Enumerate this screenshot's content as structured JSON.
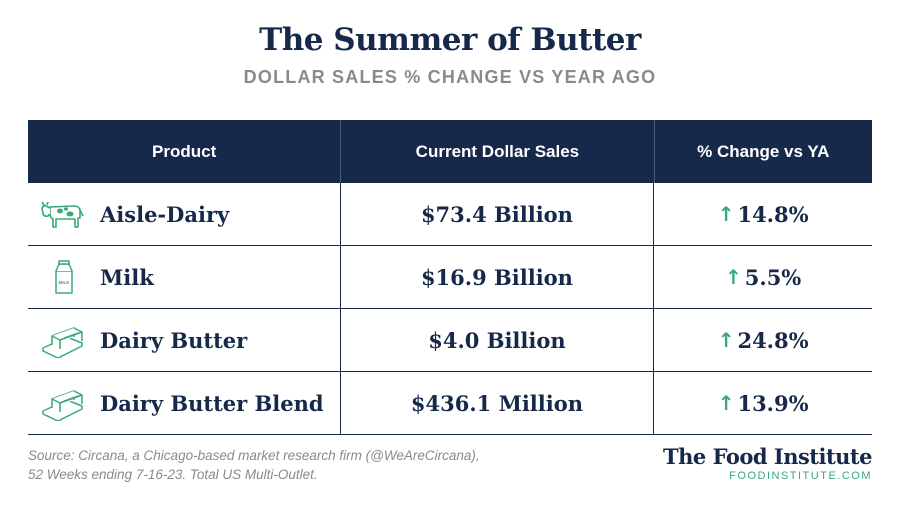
{
  "title": "The Summer of Butter",
  "subtitle": "DOLLAR SALES % CHANGE VS YEAR AGO",
  "chart_data": {
    "type": "table",
    "columns": [
      "Product",
      "Current Dollar Sales",
      "% Change vs YA"
    ],
    "rows": [
      {
        "product": "Aisle-Dairy",
        "icon": "cow-icon",
        "sales": "$73.4 Billion",
        "change": "14.8%",
        "direction": "up"
      },
      {
        "product": "Milk",
        "icon": "milk-carton-icon",
        "sales": "$16.9 Billion",
        "change": "5.5%",
        "direction": "up"
      },
      {
        "product": "Dairy Butter",
        "icon": "butter-icon",
        "sales": "$4.0 Billion",
        "change": "24.8%",
        "direction": "up"
      },
      {
        "product": "Dairy Butter Blend",
        "icon": "butter-icon",
        "sales": "$436.1 Million",
        "change": "13.9%",
        "direction": "up"
      }
    ]
  },
  "arrow_glyph": "↑",
  "source": {
    "line1": "Source: Circana, a Chicago-based market research firm (@WeAreCircana),",
    "line2": "52 Weeks ending 7-16-23. Total US Multi-Outlet."
  },
  "brand": {
    "name": "The Food Institute",
    "url": "FOODINSTITUTE.COM"
  },
  "icon_label_milk": "MILK",
  "colors": {
    "navy": "#16294a",
    "accent_green": "#3aa877",
    "subtitle_gray": "#8a8a8a"
  }
}
